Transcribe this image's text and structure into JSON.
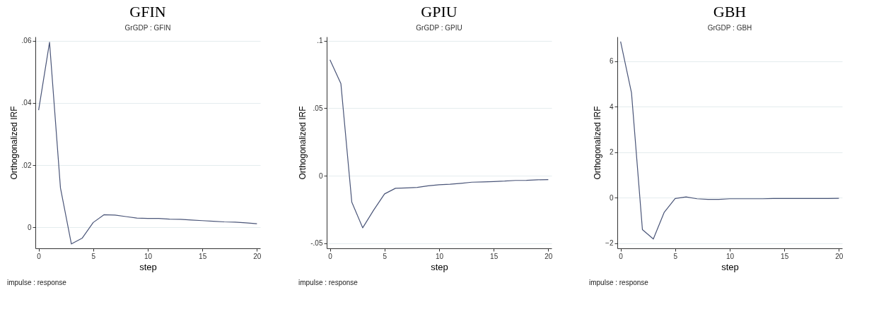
{
  "chart_data": [
    {
      "type": "line",
      "title": "GFIN",
      "subtitle": "GrGDP : GFIN",
      "xlabel": "step",
      "ylabel": "Orthogonalized IRF",
      "annotations": [
        "impulse : response"
      ],
      "grid": "y",
      "x": [
        0,
        1,
        2,
        3,
        4,
        5,
        6,
        7,
        8,
        9,
        10,
        11,
        12,
        13,
        14,
        15,
        16,
        17,
        18,
        19,
        20
      ],
      "series": [
        {
          "color": "#4a5578",
          "values": [
            0.0377,
            0.0595,
            0.0127,
            -0.0053,
            -0.0034,
            0.0016,
            0.0041,
            0.004,
            0.0035,
            0.003,
            0.0029,
            0.0029,
            0.0027,
            0.0026,
            0.0024,
            0.0022,
            0.002,
            0.0018,
            0.0017,
            0.0015,
            0.0012
          ]
        }
      ],
      "xlim": [
        -0.3,
        20.3
      ],
      "xticks": [
        0,
        5,
        10,
        15,
        20
      ],
      "ylim": [
        -0.0067,
        0.0613
      ],
      "yticks": [
        {
          "value": 0,
          "label": "0"
        },
        {
          "value": 0.02,
          "label": ".02"
        },
        {
          "value": 0.04,
          "label": ".04"
        },
        {
          "value": 0.06,
          "label": ".06"
        }
      ]
    },
    {
      "type": "line",
      "title": "GPIU",
      "subtitle": "GrGDP : GPIU",
      "xlabel": "step",
      "ylabel": "Orthogonalized IRF",
      "annotations": [
        "impulse : response"
      ],
      "grid": "y",
      "x": [
        0,
        1,
        2,
        3,
        4,
        5,
        6,
        7,
        8,
        9,
        10,
        11,
        12,
        13,
        14,
        15,
        16,
        17,
        18,
        19,
        20
      ],
      "series": [
        {
          "color": "#4a5578",
          "values": [
            0.0859,
            0.0683,
            -0.0196,
            -0.0386,
            -0.0255,
            -0.0135,
            -0.0093,
            -0.009,
            -0.0087,
            -0.0075,
            -0.0067,
            -0.0063,
            -0.0056,
            -0.0048,
            -0.0046,
            -0.0043,
            -0.004,
            -0.0035,
            -0.0034,
            -0.003,
            -0.0029
          ]
        }
      ],
      "xlim": [
        -0.3,
        20.3
      ],
      "xticks": [
        0,
        5,
        10,
        15,
        20
      ],
      "ylim": [
        -0.0538,
        0.103
      ],
      "yticks": [
        {
          "value": -0.05,
          "label": "-.05"
        },
        {
          "value": 0,
          "label": "0"
        },
        {
          "value": 0.05,
          "label": ".05"
        },
        {
          "value": 0.1,
          "label": ".1"
        }
      ]
    },
    {
      "type": "line",
      "title": "GBH",
      "subtitle": "GrGDP : GBH",
      "xlabel": "step",
      "ylabel": "Orthogonalized IRF",
      "annotations": [
        "impulse : response"
      ],
      "grid": "y",
      "x": [
        0,
        1,
        2,
        3,
        4,
        5,
        6,
        7,
        8,
        9,
        10,
        11,
        12,
        13,
        14,
        15,
        16,
        17,
        18,
        19,
        20
      ],
      "series": [
        {
          "color": "#4a5578",
          "values": [
            6.87,
            4.61,
            -1.41,
            -1.82,
            -0.64,
            -0.04,
            0.03,
            -0.05,
            -0.08,
            -0.08,
            -0.05,
            -0.05,
            -0.05,
            -0.05,
            -0.04,
            -0.04,
            -0.04,
            -0.04,
            -0.04,
            -0.04,
            -0.03
          ]
        }
      ],
      "xlim": [
        -0.3,
        20.3
      ],
      "xticks": [
        0,
        5,
        10,
        15,
        20
      ],
      "ylim": [
        -2.23,
        7.08
      ],
      "yticks": [
        -2,
        0,
        2,
        4,
        6
      ]
    }
  ]
}
